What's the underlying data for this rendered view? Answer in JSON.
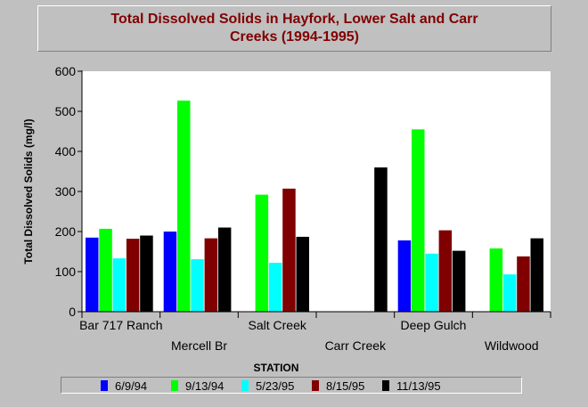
{
  "title_lines": [
    "Total Dissolved Solids in Hayfork, Lower Salt and Carr",
    "Creeks (1994-1995)"
  ],
  "colors": {
    "background": "#c0c0c0",
    "plot_bg": "#ffffff",
    "title": "#800000",
    "series": [
      "#0000ff",
      "#00ff00",
      "#00ffff",
      "#800000",
      "#000000"
    ]
  },
  "chart_data": {
    "type": "bar",
    "title": "Total Dissolved Solids in Hayfork, Lower Salt and Carr Creeks (1994-1995)",
    "xlabel": "STATION",
    "ylabel": "Total Dissolved Solids (mg/l)",
    "ylim": [
      0,
      600
    ],
    "yticks": [
      0,
      100,
      200,
      300,
      400,
      500,
      600
    ],
    "grid": false,
    "legend_position": "bottom",
    "categories": [
      "Bar 717 Ranch",
      "Mercell Br",
      "Salt Creek",
      "Carr Creek",
      "Deep Gulch",
      "Wildwood"
    ],
    "series": [
      {
        "name": "6/9/94",
        "values": [
          185,
          200,
          null,
          null,
          178,
          null
        ]
      },
      {
        "name": "9/13/94",
        "values": [
          207,
          527,
          292,
          null,
          455,
          158
        ]
      },
      {
        "name": "5/23/95",
        "values": [
          133,
          131,
          122,
          null,
          145,
          93
        ]
      },
      {
        "name": "8/15/95",
        "values": [
          182,
          183,
          307,
          null,
          203,
          138
        ]
      },
      {
        "name": "11/13/95",
        "values": [
          190,
          210,
          187,
          360,
          152,
          183
        ]
      }
    ]
  }
}
